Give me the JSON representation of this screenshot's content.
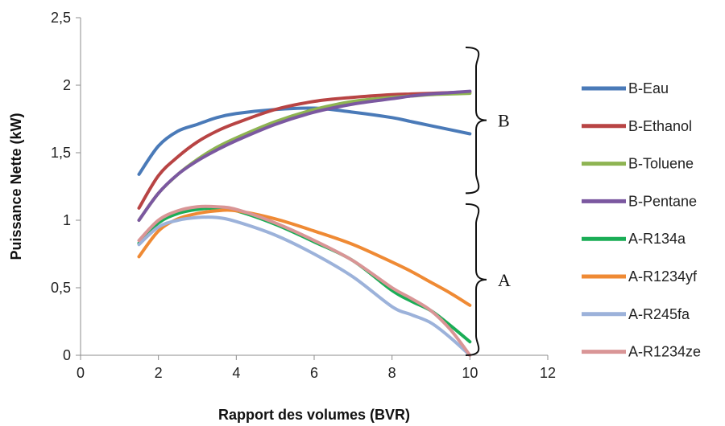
{
  "chart_data": {
    "type": "line",
    "xlabel": "Rapport des volumes (BVR)",
    "ylabel": "Puissance Nette (kW)",
    "xlim": [
      0,
      12
    ],
    "ylim": [
      0,
      2.5
    ],
    "x_ticks": [
      "0",
      "2",
      "4",
      "6",
      "8",
      "10",
      "12"
    ],
    "y_ticks": [
      "0",
      "0,5",
      "1",
      "1,5",
      "2",
      "2,5"
    ],
    "grid": false,
    "legend_position": "right",
    "x": [
      1.5,
      2,
      2.5,
      3,
      3.5,
      4,
      5,
      6,
      7,
      8,
      8.5,
      9,
      9.5,
      10
    ],
    "series": [
      {
        "name": "B-Eau",
        "color": "#4a7ab8",
        "values": [
          1.34,
          1.55,
          1.66,
          1.71,
          1.76,
          1.79,
          1.82,
          1.83,
          1.8,
          1.76,
          1.73,
          1.7,
          1.67,
          1.64
        ]
      },
      {
        "name": "B-Ethanol",
        "color": "#b84444",
        "values": [
          1.09,
          1.33,
          1.47,
          1.58,
          1.66,
          1.72,
          1.82,
          1.88,
          1.91,
          1.93,
          1.935,
          1.94,
          1.945,
          1.95
        ]
      },
      {
        "name": "B-Toluene",
        "color": "#8eb452",
        "values": [
          1.0,
          1.2,
          1.34,
          1.45,
          1.54,
          1.61,
          1.73,
          1.82,
          1.88,
          1.91,
          1.92,
          1.93,
          1.935,
          1.94
        ]
      },
      {
        "name": "B-Pentane",
        "color": "#7b58a0",
        "values": [
          1.0,
          1.2,
          1.34,
          1.44,
          1.52,
          1.59,
          1.71,
          1.8,
          1.86,
          1.9,
          1.92,
          1.935,
          1.945,
          1.955
        ]
      },
      {
        "name": "A-R134a",
        "color": "#1aad56",
        "values": [
          0.83,
          0.98,
          1.05,
          1.08,
          1.09,
          1.07,
          0.97,
          0.84,
          0.7,
          0.48,
          0.4,
          0.33,
          0.22,
          0.1
        ]
      },
      {
        "name": "A-R1234yf",
        "color": "#ef8a34",
        "values": [
          0.73,
          0.92,
          1.01,
          1.05,
          1.07,
          1.07,
          1.01,
          0.92,
          0.82,
          0.69,
          0.62,
          0.54,
          0.46,
          0.37
        ]
      },
      {
        "name": "A-R245fa",
        "color": "#9cb2da",
        "values": [
          0.82,
          0.95,
          1.0,
          1.02,
          1.02,
          0.99,
          0.89,
          0.75,
          0.58,
          0.36,
          0.3,
          0.24,
          0.13,
          0.0
        ]
      },
      {
        "name": "A-R1234ze",
        "color": "#d99596",
        "values": [
          0.85,
          1.0,
          1.07,
          1.1,
          1.1,
          1.08,
          0.98,
          0.85,
          0.7,
          0.5,
          0.42,
          0.33,
          0.19,
          0.0
        ]
      }
    ],
    "group_labels": [
      {
        "text": "B",
        "y_range": [
          1.2,
          2.28
        ]
      },
      {
        "text": "A",
        "y_range": [
          0.0,
          1.12
        ]
      }
    ]
  }
}
